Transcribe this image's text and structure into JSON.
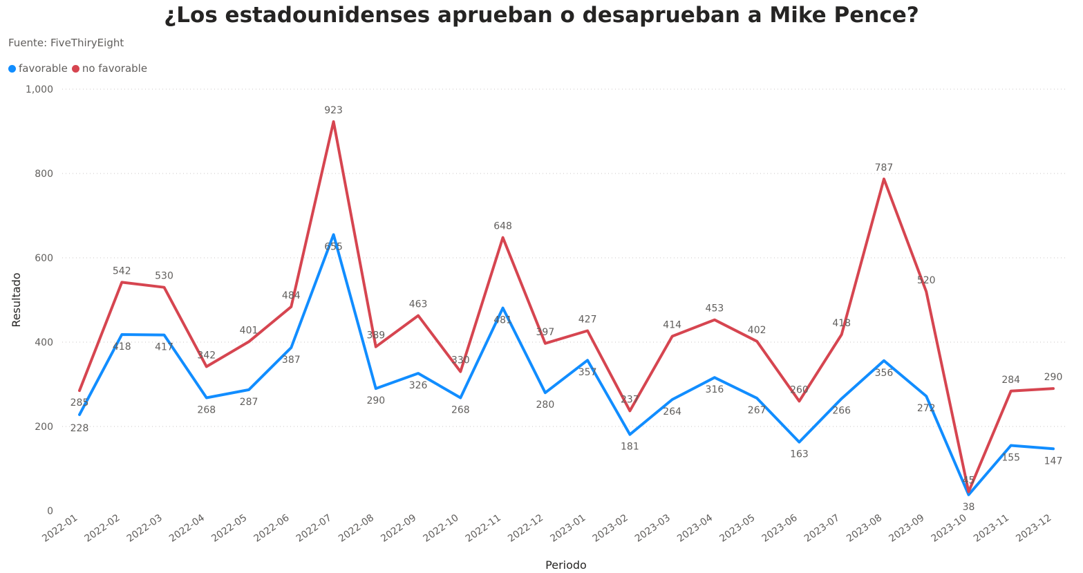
{
  "title": "¿Los estadounidenses aprueban o desaprueban a Mike Pence?",
  "subtitle": "Fuente: FiveThiryEight",
  "legend": [
    {
      "label": "favorable",
      "color": "#118DFF"
    },
    {
      "label": "no favorable",
      "color": "#D64550"
    }
  ],
  "chart_data": {
    "type": "line",
    "xlabel": "Periodo",
    "ylabel": "Resultado",
    "ylim": [
      0,
      1000
    ],
    "yticks": [
      "0",
      "200",
      "400",
      "600",
      "800",
      "1,000"
    ],
    "grid": true,
    "legend_position": "top-left",
    "categories": [
      "2022-01",
      "2022-02",
      "2022-03",
      "2022-04",
      "2022-05",
      "2022-06",
      "2022-07",
      "2022-08",
      "2022-09",
      "2022-10",
      "2022-11",
      "2022-12",
      "2023-01",
      "2023-02",
      "2023-03",
      "2023-04",
      "2023-05",
      "2023-06",
      "2023-07",
      "2023-08",
      "2023-09",
      "2023-10",
      "2023-11",
      "2023-12"
    ],
    "series": [
      {
        "name": "favorable",
        "color": "#118DFF",
        "values": [
          228,
          418,
          417,
          268,
          287,
          387,
          655,
          290,
          326,
          268,
          481,
          280,
          357,
          181,
          264,
          316,
          267,
          163,
          266,
          356,
          272,
          38,
          155,
          147
        ]
      },
      {
        "name": "no favorable",
        "color": "#D64550",
        "values": [
          285,
          542,
          530,
          342,
          401,
          484,
          923,
          389,
          463,
          330,
          648,
          397,
          427,
          237,
          414,
          453,
          402,
          260,
          418,
          787,
          520,
          45,
          284,
          290
        ]
      }
    ]
  }
}
